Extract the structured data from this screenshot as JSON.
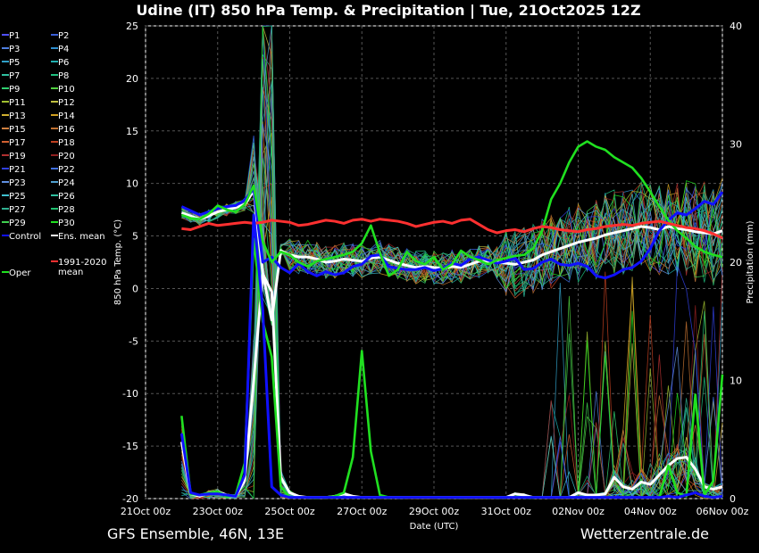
{
  "chart_data": {
    "type": "line",
    "title": "Udine  (IT)  850 hPa Temp. & Precipitation | Tue, 21Oct2025 12Z",
    "xlabel": "Date (UTC)",
    "ylabel": "850 hPa Temp. (°C)",
    "y2label": "Precipitation (mm)",
    "ylim": [
      -20,
      25
    ],
    "y2lim": [
      0,
      40
    ],
    "yticks": [
      "25",
      "20",
      "15",
      "10",
      "5",
      "0",
      "-5",
      "-10",
      "-15",
      "-20"
    ],
    "y2ticks": [
      "40",
      "30",
      "20",
      "10",
      "0"
    ],
    "x_start": "21Oct 00z",
    "x_end": "06Nov 00z",
    "xticks": [
      "21Oct 00z",
      "23Oct 00z",
      "25Oct 00z",
      "27Oct 00z",
      "29Oct 00z",
      "31Oct 00z",
      "02Nov 00z",
      "04Nov 00z",
      "06Nov 00z"
    ],
    "grid": true,
    "legend_position": "left",
    "legend": [
      {
        "label": "P1",
        "color": "#5050ff"
      },
      {
        "label": "P2",
        "color": "#3a5fd8"
      },
      {
        "label": "P3",
        "color": "#4f7fe0"
      },
      {
        "label": "P4",
        "color": "#2f8fd0"
      },
      {
        "label": "P5",
        "color": "#30a0c8"
      },
      {
        "label": "P6",
        "color": "#20b0b0"
      },
      {
        "label": "P7",
        "color": "#30c0a0"
      },
      {
        "label": "P8",
        "color": "#20c080"
      },
      {
        "label": "P9",
        "color": "#30d070"
      },
      {
        "label": "P10",
        "color": "#50d040"
      },
      {
        "label": "P11",
        "color": "#a0c030"
      },
      {
        "label": "P12",
        "color": "#c0c040"
      },
      {
        "label": "P13",
        "color": "#d0b030"
      },
      {
        "label": "P14",
        "color": "#d0a020"
      },
      {
        "label": "P15",
        "color": "#d08040"
      },
      {
        "label": "P16",
        "color": "#c07030"
      },
      {
        "label": "P17",
        "color": "#d06030"
      },
      {
        "label": "P18",
        "color": "#c04020"
      },
      {
        "label": "P19",
        "color": "#b03030"
      },
      {
        "label": "P20",
        "color": "#902020"
      },
      {
        "label": "P21",
        "color": "#3040e0"
      },
      {
        "label": "P22",
        "color": "#4070e0"
      },
      {
        "label": "P23",
        "color": "#6090e0"
      },
      {
        "label": "P24",
        "color": "#50a0d0"
      },
      {
        "label": "P25",
        "color": "#40c0d0"
      },
      {
        "label": "P26",
        "color": "#30c0a0"
      },
      {
        "label": "P27",
        "color": "#30b090"
      },
      {
        "label": "P28",
        "color": "#20c070"
      },
      {
        "label": "P29",
        "color": "#40d050"
      },
      {
        "label": "P30",
        "color": "#20e020"
      },
      {
        "label": "Control",
        "color": "#1010ff"
      },
      {
        "label": "Ens. mean",
        "color": "#ffffff"
      },
      {
        "label": "Oper",
        "color": "#20e020"
      },
      {
        "label": "1991-2020 mean",
        "color": "#ff3030"
      }
    ],
    "series_temp": [
      {
        "name": "Ens. mean",
        "color": "#ffffff",
        "x": [
          2,
          2.5,
          3,
          3.5,
          4,
          4.5,
          5,
          5.5,
          6,
          6.5,
          7,
          7.5,
          8,
          8.5,
          9,
          9.5,
          10,
          10.5,
          11,
          11.5,
          12,
          12.5,
          13,
          13.5,
          14,
          14.5,
          15,
          15.5,
          16,
          16.5,
          17,
          17.5,
          18,
          18.5,
          19,
          19.5,
          20,
          20.5,
          21,
          21.5,
          22,
          22.5,
          23,
          23.5,
          24,
          24.5,
          25,
          25.5,
          26,
          26.5,
          27,
          27.5,
          28,
          28.5,
          29,
          29.5,
          30,
          30.5,
          31,
          31.5,
          32
        ],
        "y": [
          7.2,
          6.9,
          6.6,
          6.9,
          7.3,
          7.5,
          7.7,
          8.0,
          9.3,
          1.5,
          -3.0,
          3.6,
          3.2,
          3.0,
          3.0,
          2.8,
          2.5,
          2.6,
          2.8,
          2.7,
          2.6,
          2.9,
          3.0,
          2.7,
          2.4,
          2.2,
          2.0,
          2.1,
          2.0,
          1.9,
          2.1,
          2.0,
          2.3,
          2.6,
          2.6,
          2.5,
          2.4,
          2.3,
          2.5,
          2.7,
          3.2,
          3.5,
          3.8,
          4.1,
          4.4,
          4.6,
          4.8,
          5.1,
          5.3,
          5.5,
          5.7,
          5.9,
          5.8,
          5.6,
          5.9,
          5.7,
          5.6,
          5.4,
          5.3,
          5.2,
          5.5
        ]
      },
      {
        "name": "Control",
        "color": "#1010ff",
        "x": [
          2,
          2.5,
          3,
          3.5,
          4,
          4.5,
          5,
          5.5,
          6,
          6.5,
          7,
          7.5,
          8,
          8.5,
          9,
          9.5,
          10,
          10.5,
          11,
          11.5,
          12,
          12.5,
          13,
          13.5,
          14,
          14.5,
          15,
          15.5,
          16,
          16.5,
          17,
          17.5,
          18,
          18.5,
          19,
          19.5,
          20,
          20.5,
          21,
          21.5,
          22,
          22.5,
          23,
          23.5,
          24,
          24.5,
          25,
          25.5,
          26,
          26.5,
          27,
          27.5,
          28,
          28.5,
          29,
          29.5,
          30,
          30.5,
          31,
          31.5,
          32
        ],
        "y": [
          7.8,
          7.4,
          7.0,
          7.3,
          7.6,
          7.8,
          7.9,
          8.4,
          9.5,
          2.5,
          3.0,
          2.0,
          1.5,
          2.4,
          1.6,
          1.2,
          1.6,
          1.3,
          1.5,
          2.1,
          2.3,
          3.1,
          3.2,
          2.1,
          1.9,
          1.8,
          1.8,
          2.0,
          1.7,
          1.9,
          2.4,
          2.2,
          2.8,
          3.0,
          2.7,
          2.4,
          2.6,
          2.9,
          1.8,
          1.9,
          2.5,
          2.8,
          2.3,
          2.2,
          2.4,
          2.1,
          1.2,
          1.0,
          1.3,
          1.8,
          2.0,
          2.6,
          3.8,
          5.5,
          6.5,
          7.2,
          7.0,
          7.6,
          8.3,
          8.0,
          9.2
        ]
      },
      {
        "name": "Oper",
        "color": "#20e020",
        "x": [
          2,
          2.5,
          3,
          3.5,
          4,
          4.5,
          5,
          5.5,
          6,
          6.5,
          7,
          7.5,
          8,
          8.5,
          9,
          9.5,
          10,
          10.5,
          11,
          11.5,
          12,
          12.5,
          13,
          13.5,
          14,
          14.5,
          15,
          15.5,
          16,
          16.5,
          17,
          17.5,
          18,
          18.5,
          19,
          19.5,
          20,
          20.5,
          21,
          21.5,
          22,
          22.5,
          23,
          23.5,
          24,
          24.5,
          25,
          25.5,
          26,
          26.5,
          27,
          27.5,
          28,
          28.5,
          29,
          29.5,
          30,
          30.5,
          31,
          31.5,
          32
        ],
        "y": [
          7.0,
          6.7,
          6.6,
          7.1,
          7.9,
          7.5,
          7.3,
          8.0,
          9.8,
          4.5,
          2.5,
          3.5,
          3.2,
          2.5,
          2.1,
          2.6,
          2.8,
          3.0,
          3.2,
          3.5,
          4.3,
          6.0,
          3.4,
          1.2,
          1.8,
          3.5,
          2.6,
          2.3,
          3.0,
          1.8,
          2.3,
          3.6,
          3.0,
          2.7,
          2.3,
          2.7,
          2.9,
          3.1,
          3.2,
          3.8,
          5.5,
          8.5,
          10.0,
          12.0,
          13.5,
          14.0,
          13.5,
          13.2,
          12.5,
          12.0,
          11.5,
          10.5,
          9.2,
          7.8,
          6.5,
          5.5,
          4.8,
          4.0,
          3.5,
          3.2,
          3.0
        ]
      },
      {
        "name": "1991-2020 mean",
        "color": "#ff3030",
        "x": [
          2,
          2.5,
          3,
          3.5,
          4,
          4.5,
          5,
          5.5,
          6,
          6.5,
          7,
          7.5,
          8,
          8.5,
          9,
          9.5,
          10,
          10.5,
          11,
          11.5,
          12,
          12.5,
          13,
          13.5,
          14,
          14.5,
          15,
          15.5,
          16,
          16.5,
          17,
          17.5,
          18,
          18.5,
          19,
          19.5,
          20,
          20.5,
          21,
          21.5,
          22,
          22.5,
          23,
          23.5,
          24,
          24.5,
          25,
          25.5,
          26,
          26.5,
          27,
          27.5,
          28,
          28.5,
          29,
          29.5,
          30,
          30.5,
          31,
          31.5,
          32
        ],
        "y": [
          5.7,
          5.6,
          5.9,
          6.2,
          6.0,
          6.1,
          6.2,
          6.3,
          6.2,
          6.3,
          6.5,
          6.4,
          6.3,
          6.0,
          6.1,
          6.3,
          6.5,
          6.4,
          6.2,
          6.5,
          6.6,
          6.4,
          6.6,
          6.5,
          6.4,
          6.2,
          5.9,
          6.1,
          6.3,
          6.4,
          6.2,
          6.5,
          6.6,
          6.1,
          5.6,
          5.3,
          5.5,
          5.6,
          5.4,
          5.7,
          5.9,
          5.8,
          5.6,
          5.5,
          5.4,
          5.6,
          5.7,
          5.9,
          6.0,
          6.1,
          6.0,
          6.2,
          6.3,
          6.4,
          6.2,
          6.0,
          5.8,
          5.7,
          5.5,
          5.2,
          4.8
        ]
      }
    ],
    "series_precip": [
      {
        "name": "Ens. mean",
        "color": "#ffffff",
        "x": [
          2,
          2.5,
          3,
          3.5,
          4,
          4.5,
          5,
          5.5,
          6,
          6.5,
          7,
          7.5,
          8,
          8.5,
          9,
          9.5,
          10,
          10.5,
          11,
          11.5,
          12,
          12.5,
          13,
          13.5,
          14,
          14.5,
          15,
          15.5,
          16,
          16.5,
          17,
          17.5,
          18,
          18.5,
          19,
          19.5,
          20,
          20.5,
          21,
          21.5,
          22,
          22.5,
          23,
          23.5,
          24,
          24.5,
          25,
          25.5,
          26,
          26.5,
          27,
          27.5,
          28,
          28.5,
          29,
          29.5,
          30,
          30.5,
          31,
          31.5,
          32
        ],
        "y": [
          4.8,
          0.4,
          0.2,
          0.5,
          0.6,
          0.3,
          0.2,
          1.5,
          10.0,
          19.0,
          17.5,
          1.8,
          0.5,
          0.2,
          0.1,
          0.1,
          0.1,
          0.2,
          0.4,
          0.2,
          0.1,
          0.1,
          0.1,
          0.1,
          0.1,
          0.1,
          0.1,
          0.1,
          0.1,
          0.1,
          0.1,
          0.1,
          0.1,
          0.1,
          0.1,
          0.1,
          0.1,
          0.4,
          0.3,
          0.1,
          0.1,
          0.1,
          0.1,
          0.1,
          0.5,
          0.3,
          0.3,
          0.4,
          1.8,
          1.0,
          0.8,
          1.4,
          1.2,
          2.0,
          2.8,
          3.4,
          3.5,
          2.5,
          1.0,
          0.8,
          1.0
        ]
      },
      {
        "name": "Oper",
        "color": "#20e020",
        "x": [
          2,
          2.5,
          3,
          3.5,
          4,
          4.5,
          5,
          5.5,
          6,
          6.5,
          7,
          7.5,
          8,
          8.5,
          9,
          9.5,
          10,
          10.5,
          11,
          11.5,
          12,
          12.5,
          13,
          13.5,
          14,
          14.5,
          15,
          15.5,
          16,
          16.5,
          17,
          17.5,
          18,
          18.5,
          19,
          19.5,
          20,
          20.5,
          21,
          21.5,
          22,
          22.5,
          23,
          23.5,
          24,
          24.5,
          25,
          25.5,
          26,
          26.5,
          27,
          27.5,
          28,
          28.5,
          29,
          29.5,
          30,
          30.5,
          31,
          31.5,
          32
        ],
        "y": [
          7.0,
          0.4,
          0.3,
          0.5,
          0.6,
          0.2,
          0.3,
          3.0,
          22.0,
          15.0,
          12.0,
          1.0,
          0.1,
          0.1,
          0.1,
          0.1,
          0.1,
          0.2,
          0.5,
          3.5,
          12.5,
          4.0,
          0.3,
          0.1,
          0.1,
          0.1,
          0.1,
          0.1,
          0.1,
          0.1,
          0.1,
          0.1,
          0.1,
          0.1,
          0.1,
          0.1,
          0.1,
          0.1,
          0.1,
          0.1,
          0.1,
          0.1,
          0.1,
          0.1,
          0.1,
          0.1,
          0.1,
          0.1,
          0.1,
          0.1,
          0.1,
          0.1,
          0.1,
          0.1,
          2.8,
          0.5,
          0.2,
          8.8,
          0.3,
          1.5,
          10.5
        ]
      },
      {
        "name": "Control",
        "color": "#1010ff",
        "x": [
          2,
          2.5,
          3,
          3.5,
          4,
          4.5,
          5,
          5.5,
          6,
          6.5,
          7,
          7.5,
          8,
          8.5,
          9,
          9.5,
          10,
          10.5,
          11,
          11.5,
          12,
          12.5,
          13,
          13.5,
          14,
          14.5,
          15,
          15.5,
          16,
          16.5,
          17,
          17.5,
          18,
          18.5,
          19,
          19.5,
          20,
          20.5,
          21,
          21.5,
          22,
          22.5,
          23,
          23.5,
          24,
          24.5,
          25,
          25.5,
          26,
          26.5,
          27,
          27.5,
          28,
          28.5,
          29,
          29.5,
          30,
          30.5,
          31,
          31.5,
          32
        ],
        "y": [
          5.5,
          0.5,
          0.3,
          0.4,
          0.4,
          0.3,
          0.2,
          2.0,
          24.0,
          16.0,
          1.0,
          0.3,
          0.1,
          0.1,
          0.1,
          0.1,
          0.1,
          0.1,
          0.1,
          0.1,
          0.1,
          0.1,
          0.1,
          0.1,
          0.1,
          0.1,
          0.1,
          0.1,
          0.1,
          0.1,
          0.1,
          0.1,
          0.1,
          0.1,
          0.1,
          0.1,
          0.1,
          0.1,
          0.1,
          0.1,
          0.1,
          0.1,
          0.1,
          0.1,
          0.1,
          0.1,
          0.1,
          0.1,
          0.1,
          0.1,
          0.1,
          0.1,
          0.1,
          0.1,
          0.2,
          0.1,
          0.3,
          0.5,
          0.2,
          0.1,
          0.2
        ]
      }
    ]
  },
  "footer": {
    "left": "GFS Ensemble, 46N, 13E",
    "right": "Wetterzentrale.de"
  }
}
